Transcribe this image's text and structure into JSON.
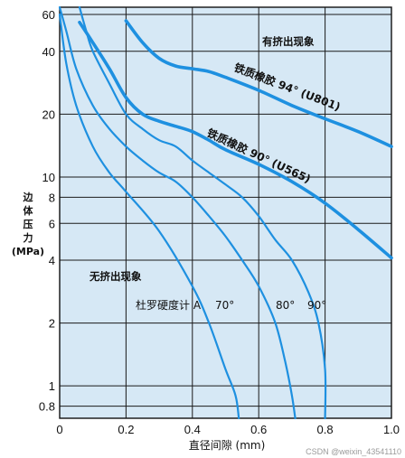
{
  "chart_data": {
    "type": "line",
    "xlabel": "直径间隙 (mm)",
    "ylabel": [
      "边",
      "体",
      "压",
      "力",
      "(MPa)"
    ],
    "x_scale": "linear",
    "y_scale": "log",
    "xlim": [
      0,
      1.0
    ],
    "ylim": [
      0.7,
      65
    ],
    "x_ticks": [
      0,
      0.2,
      0.4,
      0.6,
      0.8,
      1.0
    ],
    "x_tick_labels": [
      "0",
      "0.2",
      "0.4",
      "0.6",
      "0.8",
      "1.0"
    ],
    "y_ticks": [
      0.8,
      1,
      2,
      4,
      6,
      8,
      10,
      20,
      40,
      60
    ],
    "y_tick_labels": [
      "0.8",
      "1",
      "2",
      "4",
      "6",
      "8",
      "10",
      "20",
      "40",
      "60"
    ],
    "grid": true,
    "background_color": "#d6e8f5",
    "line_color": "#1e90e0",
    "series": [
      {
        "name": "70°",
        "group": "durometer",
        "x": [
          0.0,
          0.02,
          0.05,
          0.1,
          0.15,
          0.2,
          0.3,
          0.4,
          0.45,
          0.5,
          0.53,
          0.54
        ],
        "y": [
          60,
          35,
          22,
          14,
          10.5,
          8.5,
          5.5,
          3,
          2,
          1.2,
          0.9,
          0.7
        ]
      },
      {
        "name": "80°",
        "group": "durometer",
        "x": [
          0.0,
          0.02,
          0.05,
          0.1,
          0.15,
          0.2,
          0.25,
          0.3,
          0.35,
          0.4,
          0.45,
          0.5,
          0.55,
          0.6,
          0.65,
          0.68,
          0.7,
          0.71
        ],
        "y": [
          65,
          50,
          33,
          22,
          17,
          14,
          12,
          10.5,
          9.5,
          8,
          6.5,
          5.2,
          4,
          3,
          2,
          1.3,
          0.9,
          0.7
        ]
      },
      {
        "name": "90°",
        "group": "durometer",
        "x": [
          0.06,
          0.08,
          0.1,
          0.15,
          0.2,
          0.25,
          0.3,
          0.35,
          0.4,
          0.45,
          0.5,
          0.55,
          0.6,
          0.65,
          0.7,
          0.75,
          0.78,
          0.8,
          0.8
        ],
        "y": [
          65,
          50,
          40,
          28,
          20,
          17,
          15,
          14,
          12,
          10.5,
          9.2,
          8,
          6.5,
          5,
          4,
          2.8,
          2,
          1.2,
          0.7
        ]
      },
      {
        "name": "铁质橡胶 90° (U565)",
        "group": "material",
        "x": [
          0.06,
          0.1,
          0.15,
          0.2,
          0.25,
          0.3,
          0.35,
          0.4,
          0.45,
          0.5,
          0.6,
          0.7,
          0.8,
          0.9,
          1.0
        ],
        "y": [
          55,
          44,
          33,
          24,
          20,
          18.5,
          17.5,
          16.5,
          15,
          13.5,
          11.5,
          9.5,
          7.5,
          5.6,
          4.1
        ]
      },
      {
        "name": "铁质橡胶 94° (U801)",
        "group": "material",
        "x": [
          0.2,
          0.25,
          0.3,
          0.35,
          0.4,
          0.45,
          0.5,
          0.6,
          0.7,
          0.8,
          0.9,
          1.0
        ],
        "y": [
          56,
          44,
          37,
          34,
          33,
          32,
          30,
          26,
          22,
          19,
          16.5,
          14
        ]
      }
    ],
    "annotations": {
      "extrusion": "有挤出现象",
      "no_extrusion": "无挤出现象",
      "durometer_label": "杜罗硬度计 A",
      "u801": "铁质橡胶 94° (U801)",
      "u565": "铁质橡胶 90° (U565)",
      "d70": "70°",
      "d80": "80°",
      "d90": "90°"
    },
    "watermark": "CSDN @weixin_43541110"
  }
}
